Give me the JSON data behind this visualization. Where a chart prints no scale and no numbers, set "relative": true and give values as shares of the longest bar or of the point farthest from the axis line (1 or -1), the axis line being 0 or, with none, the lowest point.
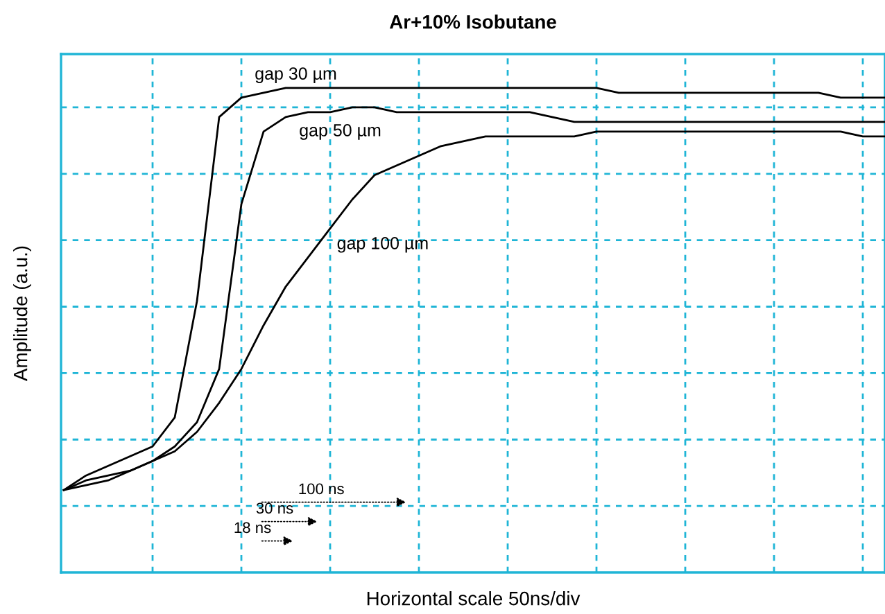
{
  "chart_data": {
    "type": "line",
    "title": "Ar+10% Isobutane",
    "xlabel": "Horizontal scale 50ns/div",
    "ylabel": "Amplitude (a.u.)",
    "relative": true,
    "grid": true,
    "line_style": "solid",
    "categories": [
      null,
      null,
      null,
      null,
      null,
      null,
      null,
      null,
      null,
      null,
      null,
      null,
      null,
      null,
      null,
      null,
      null,
      null,
      null,
      null,
      null,
      null,
      null,
      null,
      null,
      null,
      null,
      null,
      null,
      null,
      null,
      null,
      null,
      null,
      null,
      null,
      null,
      null
    ],
    "series": [
      {
        "name": "gap 30 µm",
        "color": "#000000",
        "values": [
          0.17,
          0.2,
          0.22,
          0.24,
          0.26,
          0.32,
          0.56,
          0.94,
          0.98,
          0.99,
          1,
          1,
          1,
          1,
          1,
          1,
          1,
          1,
          1,
          1,
          1,
          1,
          1,
          1,
          1,
          0.99,
          0.99,
          0.99,
          0.99,
          0.99,
          0.99,
          0.99,
          0.99,
          0.99,
          0.99,
          0.98,
          0.98,
          0.98
        ]
      },
      {
        "name": "gap 50 µm",
        "color": "#000000",
        "values": [
          0.17,
          0.19,
          0.2,
          0.21,
          0.23,
          0.26,
          0.31,
          0.42,
          0.76,
          0.91,
          0.94,
          0.95,
          0.95,
          0.96,
          0.96,
          0.95,
          0.95,
          0.95,
          0.95,
          0.95,
          0.95,
          0.95,
          0.94,
          0.93,
          0.93,
          0.93,
          0.93,
          0.93,
          0.93,
          0.93,
          0.93,
          0.93,
          0.93,
          0.93,
          0.93,
          0.93,
          0.93,
          0.93
        ]
      },
      {
        "name": "gap 100 µm",
        "color": "#000000",
        "values": [
          0.17,
          0.18,
          0.19,
          0.21,
          0.23,
          0.25,
          0.29,
          0.35,
          0.42,
          0.51,
          0.59,
          0.65,
          0.71,
          0.77,
          0.82,
          0.84,
          0.86,
          0.88,
          0.89,
          0.9,
          0.9,
          0.9,
          0.9,
          0.9,
          0.91,
          0.91,
          0.91,
          0.91,
          0.91,
          0.91,
          0.91,
          0.91,
          0.91,
          0.91,
          0.91,
          0.91,
          0.9,
          0.9
        ]
      }
    ],
    "annotations": [
      "100 ns",
      "30 ns",
      "18 ns"
    ]
  }
}
